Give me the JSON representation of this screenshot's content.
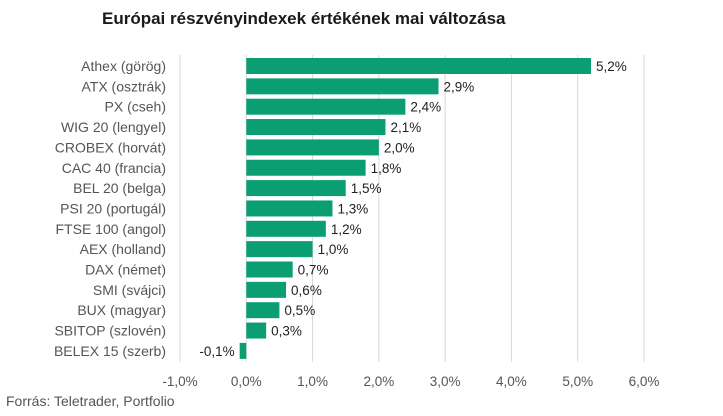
{
  "chart_data": {
    "type": "bar",
    "orientation": "horizontal",
    "title": "Európai részvényindexek értékének mai változása",
    "categories": [
      "Athex (görög)",
      "ATX (osztrák)",
      "PX (cseh)",
      "WIG 20 (lengyel)",
      "CROBEX (horvát)",
      "CAC 40 (francia)",
      "BEL 20 (belga)",
      "PSI 20 (portugál)",
      "FTSE 100 (angol)",
      "AEX (holland)",
      "DAX (német)",
      "SMI (svájci)",
      "BUX (magyar)",
      "SBITOP (szlovén)",
      "BELEX 15 (szerb)"
    ],
    "values": [
      5.2,
      2.9,
      2.4,
      2.1,
      2.0,
      1.8,
      1.5,
      1.3,
      1.2,
      1.0,
      0.7,
      0.6,
      0.5,
      0.3,
      -0.1
    ],
    "value_labels": [
      "5,2%",
      "2,9%",
      "2,4%",
      "2,1%",
      "2,0%",
      "1,8%",
      "1,5%",
      "1,3%",
      "1,2%",
      "1,0%",
      "0,7%",
      "0,6%",
      "0,5%",
      "0,3%",
      "-0,1%"
    ],
    "xlim": [
      -1.0,
      6.0
    ],
    "ticks": [
      -1.0,
      0.0,
      1.0,
      2.0,
      3.0,
      4.0,
      5.0,
      6.0
    ],
    "tick_labels": [
      "-1,0%",
      "0,0%",
      "1,0%",
      "2,0%",
      "3,0%",
      "4,0%",
      "5,0%",
      "6,0%"
    ],
    "grid": true,
    "bar_color": "#0a9e72"
  },
  "source": "Forrás: Teletrader, Portfolio"
}
